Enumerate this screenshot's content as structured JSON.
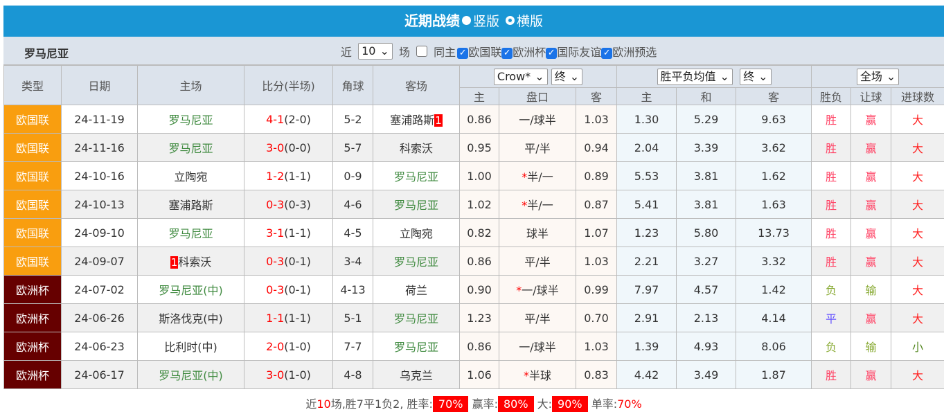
{
  "title": "近期战绩",
  "layout_options": [
    "竖版",
    "横版"
  ],
  "team": "罗马尼亚",
  "filter": {
    "prefix": "近",
    "count": "10",
    "suffix": "场",
    "same_home": "同主",
    "same_home_checked": false,
    "competitions": [
      {
        "label": "欧国联",
        "checked": true
      },
      {
        "label": "欧洲杯",
        "checked": true
      },
      {
        "label": "国际友谊",
        "checked": true
      },
      {
        "label": "欧洲预选",
        "checked": true
      }
    ]
  },
  "headers": {
    "type": "类型",
    "date": "日期",
    "home": "主场",
    "score": "比分(半场)",
    "corner": "角球",
    "away": "客场",
    "company": "Crow*",
    "handicap_stage": "终",
    "avg_select": "胜平负均值",
    "avg_stage": "终",
    "period": "全场",
    "sub": [
      "主",
      "盘口",
      "客",
      "主",
      "和",
      "客",
      "胜负",
      "让球",
      "进球数"
    ]
  },
  "colors": {
    "euro_nations": "#f99e0f",
    "euro_cup": "#660000",
    "win": "#ff4466",
    "draw": "#6655ff",
    "lose": "#88aa33",
    "big": "#ff2222",
    "small": "#558822"
  },
  "rows": [
    {
      "type": "欧国联",
      "date": "24-11-19",
      "home": "罗马尼亚",
      "home_card": "",
      "away": "塞浦路斯",
      "away_card": "1",
      "ft": "4-1",
      "ht": "(2-0)",
      "corner": "5-2",
      "h": "0.86",
      "line": "一/球半",
      "line_star": "",
      "a": "1.03",
      "w": "1.30",
      "d": "5.29",
      "l": "9.63",
      "res": "胜",
      "hc": "赢",
      "ou": "大"
    },
    {
      "type": "欧国联",
      "date": "24-11-16",
      "home": "罗马尼亚",
      "home_card": "",
      "away": "科索沃",
      "away_card": "",
      "ft": "3-0",
      "ht": "(0-0)",
      "corner": "5-7",
      "h": "0.95",
      "line": "平/半",
      "line_star": "",
      "a": "0.94",
      "w": "2.04",
      "d": "3.39",
      "l": "3.62",
      "res": "胜",
      "hc": "赢",
      "ou": "大"
    },
    {
      "type": "欧国联",
      "date": "24-10-16",
      "home": "立陶宛",
      "home_card": "",
      "away": "罗马尼亚",
      "away_card": "",
      "ft": "1-2",
      "ht": "(1-1)",
      "corner": "0-9",
      "h": "1.00",
      "line": "半/一",
      "line_star": "*",
      "a": "0.89",
      "w": "5.53",
      "d": "3.81",
      "l": "1.62",
      "res": "胜",
      "hc": "赢",
      "ou": "大"
    },
    {
      "type": "欧国联",
      "date": "24-10-13",
      "home": "塞浦路斯",
      "home_card": "",
      "away": "罗马尼亚",
      "away_card": "",
      "ft": "0-3",
      "ht": "(0-3)",
      "corner": "4-6",
      "h": "1.02",
      "line": "半/一",
      "line_star": "*",
      "a": "0.87",
      "w": "5.41",
      "d": "3.81",
      "l": "1.63",
      "res": "胜",
      "hc": "赢",
      "ou": "大"
    },
    {
      "type": "欧国联",
      "date": "24-09-10",
      "home": "罗马尼亚",
      "home_card": "",
      "away": "立陶宛",
      "away_card": "",
      "ft": "3-1",
      "ht": "(1-1)",
      "corner": "4-5",
      "h": "0.82",
      "line": "球半",
      "line_star": "",
      "a": "1.07",
      "w": "1.23",
      "d": "5.80",
      "l": "13.73",
      "res": "胜",
      "hc": "赢",
      "ou": "大"
    },
    {
      "type": "欧国联",
      "date": "24-09-07",
      "home": "科索沃",
      "home_card": "1",
      "away": "罗马尼亚",
      "away_card": "",
      "ft": "0-3",
      "ht": "(0-1)",
      "corner": "3-4",
      "h": "0.86",
      "line": "平/半",
      "line_star": "",
      "a": "1.03",
      "w": "2.21",
      "d": "3.27",
      "l": "3.32",
      "res": "胜",
      "hc": "赢",
      "ou": "大"
    },
    {
      "type": "欧洲杯",
      "date": "24-07-02",
      "home": "罗马尼亚(中)",
      "home_card": "",
      "away": "荷兰",
      "away_card": "",
      "ft": "0-3",
      "ht": "(0-1)",
      "corner": "4-13",
      "h": "0.90",
      "line": "一/球半",
      "line_star": "*",
      "a": "0.99",
      "w": "7.97",
      "d": "4.57",
      "l": "1.42",
      "res": "负",
      "hc": "输",
      "ou": "大"
    },
    {
      "type": "欧洲杯",
      "date": "24-06-26",
      "home": "斯洛伐克(中)",
      "home_card": "",
      "away": "罗马尼亚",
      "away_card": "",
      "ft": "1-1",
      "ht": "(1-1)",
      "corner": "5-1",
      "h": "1.23",
      "line": "平/半",
      "line_star": "",
      "a": "0.70",
      "w": "2.91",
      "d": "2.13",
      "l": "4.14",
      "res": "平",
      "hc": "赢",
      "ou": "大"
    },
    {
      "type": "欧洲杯",
      "date": "24-06-23",
      "home": "比利时(中)",
      "home_card": "",
      "away": "罗马尼亚",
      "away_card": "",
      "ft": "2-0",
      "ht": "(1-0)",
      "corner": "7-7",
      "h": "0.86",
      "line": "一/球半",
      "line_star": "",
      "a": "1.03",
      "w": "1.39",
      "d": "4.93",
      "l": "8.06",
      "res": "负",
      "hc": "输",
      "ou": "小"
    },
    {
      "type": "欧洲杯",
      "date": "24-06-17",
      "home": "罗马尼亚(中)",
      "home_card": "",
      "away": "乌克兰",
      "away_card": "",
      "ft": "3-0",
      "ht": "(1-0)",
      "corner": "4-8",
      "h": "1.06",
      "line": "半球",
      "line_star": "*",
      "a": "0.83",
      "w": "4.42",
      "d": "3.49",
      "l": "1.87",
      "res": "胜",
      "hc": "赢",
      "ou": "大"
    }
  ],
  "summary": {
    "p1": "近",
    "n": "10",
    "p2": "场,胜7平1负2, 胜率:",
    "win_rate": "70%",
    "p3": "赢率:",
    "hc_rate": "80%",
    "p4": "大:",
    "big_rate": "90%",
    "p5": "单率:",
    "odd_rate": "70%"
  }
}
